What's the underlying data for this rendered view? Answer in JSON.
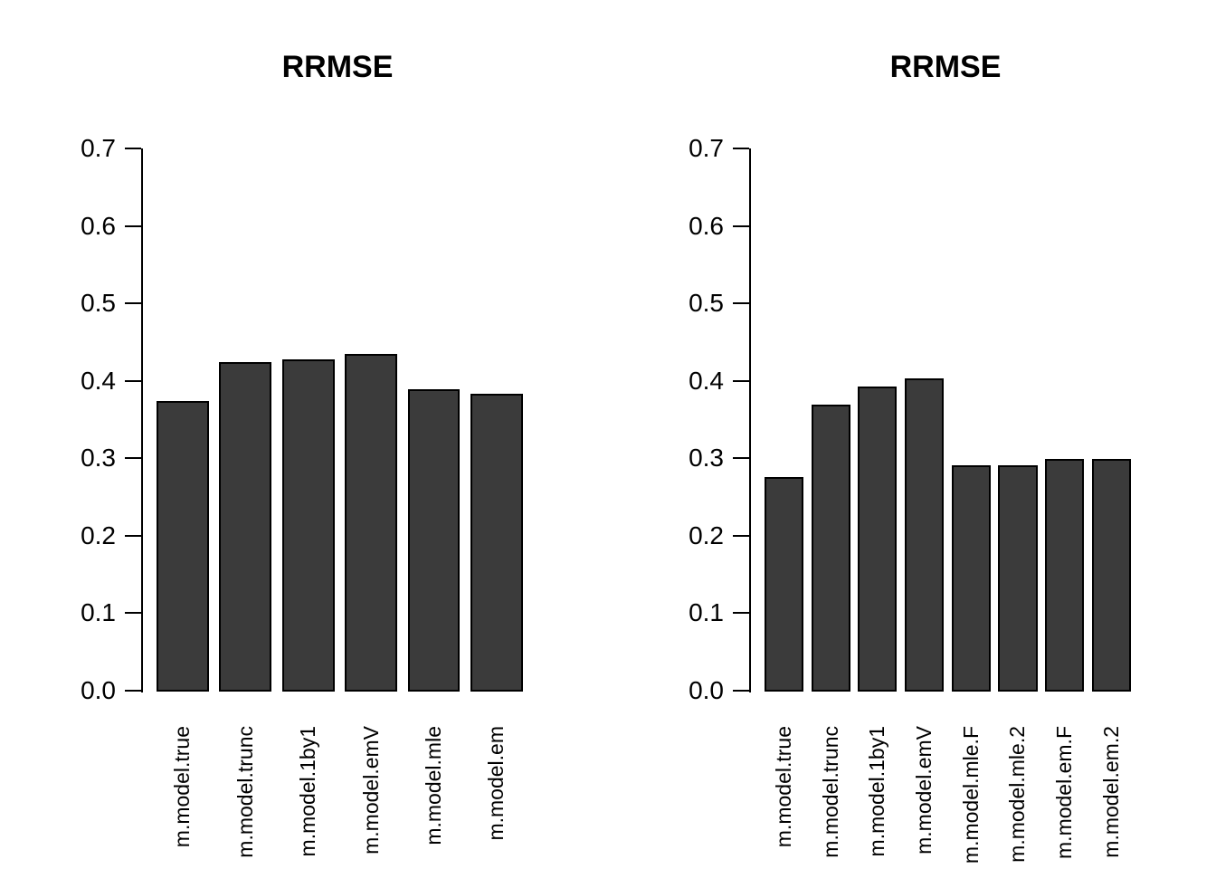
{
  "figure": {
    "background": "#ffffff",
    "bar_fill": "#3b3b3b",
    "bar_border": "#000000",
    "axis_color": "#000000",
    "text_color": "#000000"
  },
  "chart_data": [
    {
      "type": "bar",
      "title": "RRMSE",
      "categories": [
        "m.model.true",
        "m.model.trunc",
        "m.model.1by1",
        "m.model.emV",
        "m.model.mle",
        "m.model.em"
      ],
      "values": [
        0.375,
        0.425,
        0.429,
        0.436,
        0.39,
        0.385
      ],
      "xlabel": "",
      "ylabel": "",
      "ylim": [
        0,
        0.7
      ],
      "yticks": [
        "0.0",
        "0.1",
        "0.2",
        "0.3",
        "0.4",
        "0.5",
        "0.6",
        "0.7"
      ],
      "grid": false,
      "legend": null,
      "bar_space_ratio": 0.2
    },
    {
      "type": "bar",
      "title": "RRMSE",
      "categories": [
        "m.model.true",
        "m.model.trunc",
        "m.model.1by1",
        "m.model.emV",
        "m.model.mle.F",
        "m.model.mle.2",
        "m.model.em.F",
        "m.model.em.2"
      ],
      "values": [
        0.277,
        0.37,
        0.394,
        0.404,
        0.292,
        0.292,
        0.3,
        0.3
      ],
      "xlabel": "",
      "ylabel": "",
      "ylim": [
        0,
        0.7
      ],
      "yticks": [
        "0.0",
        "0.1",
        "0.2",
        "0.3",
        "0.4",
        "0.5",
        "0.6",
        "0.7"
      ],
      "grid": false,
      "legend": null,
      "bar_space_ratio": 0.2
    }
  ]
}
